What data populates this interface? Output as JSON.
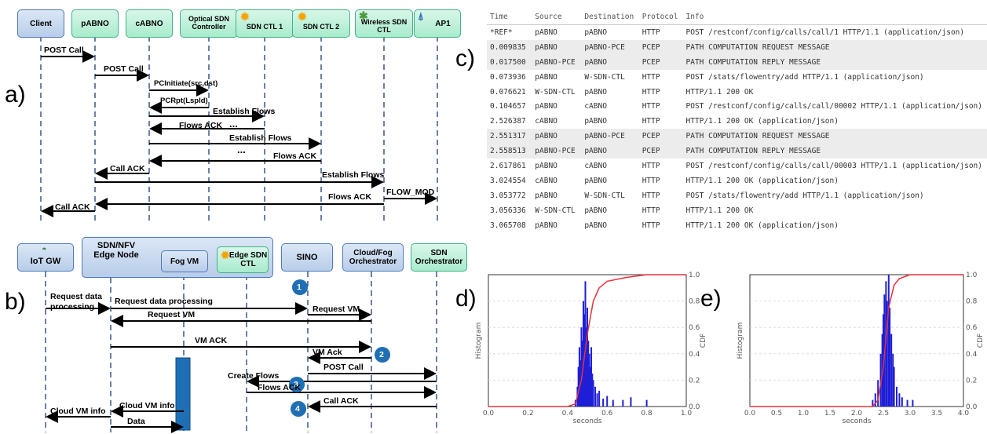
{
  "panels": {
    "a": "a)",
    "b": "b)",
    "c": "c)",
    "d": "d)",
    "e": "e)"
  },
  "seq_a": {
    "participants": [
      {
        "id": "client",
        "label": "Client",
        "style": "blue"
      },
      {
        "id": "pabno",
        "label": "pABNO",
        "style": "green"
      },
      {
        "id": "cabno",
        "label": "cABNO",
        "style": "green"
      },
      {
        "id": "optical",
        "label": "Optical SDN Controller",
        "style": "green"
      },
      {
        "id": "ctl1",
        "label": "SDN CTL 1",
        "style": "green",
        "icon": "sun-icon"
      },
      {
        "id": "ctl2",
        "label": "SDN CTL 2",
        "style": "green",
        "icon": "sun-icon"
      },
      {
        "id": "wireless",
        "label": "Wireless SDN CTL",
        "style": "green",
        "icon": "antenna-icon"
      },
      {
        "id": "ap1",
        "label": "AP1",
        "style": "green",
        "icon": "tower-icon"
      }
    ],
    "messages": [
      {
        "label": "POST Call"
      },
      {
        "label": "POST Call"
      },
      {
        "label": "PCInitiate(src,dst)"
      },
      {
        "label": "PCRpt(Lspld)"
      },
      {
        "label": "Establish Flows"
      },
      {
        "label": "Flows ACK"
      },
      {
        "label": "Establish Flows"
      },
      {
        "label": "Flows ACK"
      },
      {
        "label": "Call ACK"
      },
      {
        "label": "Establish Flows"
      },
      {
        "label": "FLOW_MOD"
      },
      {
        "label": "Flows ACK"
      },
      {
        "label": "Call ACK"
      }
    ],
    "ellipsis": "..."
  },
  "seq_b": {
    "participants": [
      {
        "id": "iotgw",
        "label": "IoT GW",
        "icon": "gauge-icon"
      },
      {
        "id": "edge",
        "label": "SDN/NFV Edge Node"
      },
      {
        "id": "fogvm",
        "label": "Fog VM"
      },
      {
        "id": "edgectl",
        "label": "Edge SDN CTL",
        "icon": "sun-icon"
      },
      {
        "id": "sino",
        "label": "SINO"
      },
      {
        "id": "cloudfog",
        "label": "Cloud/Fog Orchestrator"
      },
      {
        "id": "sdnorch",
        "label": "SDN Orchestrator"
      }
    ],
    "steps": [
      "1",
      "2",
      "3",
      "4"
    ],
    "messages": [
      {
        "label": "Request data processing"
      },
      {
        "label": "Request data processing"
      },
      {
        "label": "Request VM"
      },
      {
        "label": "Request VM"
      },
      {
        "label": "VM ACK"
      },
      {
        "label": "VM Ack"
      },
      {
        "label": "POST Call"
      },
      {
        "label": "Create Flows"
      },
      {
        "label": "Flows ACK"
      },
      {
        "label": "Call ACK"
      },
      {
        "label": "Cloud VM info"
      },
      {
        "label": "Cloud VM info"
      },
      {
        "label": "Data"
      }
    ]
  },
  "capture": {
    "headers": [
      "Time",
      "Source",
      "Destination",
      "Protocol",
      "Info"
    ],
    "rows": [
      {
        "time": "*REF*",
        "src": "pABNO",
        "dst": "pABNO",
        "proto": "HTTP",
        "info": "POST /restconf/config/calls/call/1 HTTP/1.1  (application/json)"
      },
      {
        "time": "0.009835",
        "src": "pABNO",
        "dst": "pABNO-PCE",
        "proto": "PCEP",
        "info": "PATH COMPUTATION REQUEST MESSAGE"
      },
      {
        "time": "0.017500",
        "src": "pABNO-PCE",
        "dst": "pABNO",
        "proto": "PCEP",
        "info": "PATH COMPUTATION REPLY MESSAGE"
      },
      {
        "time": "0.073936",
        "src": "pABNO",
        "dst": "W-SDN-CTL",
        "proto": "HTTP",
        "info": "POST /stats/flowentry/add HTTP/1.1  (application/json)"
      },
      {
        "time": "0.076621",
        "src": "W-SDN-CTL",
        "dst": "pABNO",
        "proto": "HTTP",
        "info": "HTTP/1.1 200 OK"
      },
      {
        "time": "0.104657",
        "src": "pABNO",
        "dst": "cABNO",
        "proto": "HTTP",
        "info": "POST /restconf/config/calls/call/00002 HTTP/1.1  (application/json)"
      },
      {
        "time": "2.526387",
        "src": "cABNO",
        "dst": "pABNO",
        "proto": "HTTP",
        "info": "HTTP/1.1 200 OK  (application/json)"
      },
      {
        "time": "2.551317",
        "src": "pABNO",
        "dst": "pABNO-PCE",
        "proto": "PCEP",
        "info": "PATH COMPUTATION REQUEST MESSAGE"
      },
      {
        "time": "2.558513",
        "src": "pABNO-PCE",
        "dst": "pABNO",
        "proto": "PCEP",
        "info": "PATH COMPUTATION REPLY MESSAGE"
      },
      {
        "time": "2.617861",
        "src": "pABNO",
        "dst": "cABNO",
        "proto": "HTTP",
        "info": "POST /restconf/config/calls/call/00003 HTTP/1.1  (application/json)"
      },
      {
        "time": "3.024554",
        "src": "cABNO",
        "dst": "pABNO",
        "proto": "HTTP",
        "info": "HTTP/1.1 200 OK  (application/json)"
      },
      {
        "time": "3.053772",
        "src": "pABNO",
        "dst": "W-SDN-CTL",
        "proto": "HTTP",
        "info": "POST /stats/flowentry/add HTTP/1.1  (application/json)"
      },
      {
        "time": "3.056336",
        "src": "W-SDN-CTL",
        "dst": "pABNO",
        "proto": "HTTP",
        "info": "HTTP/1.1 200 OK"
      },
      {
        "time": "3.065708",
        "src": "pABNO",
        "dst": "pABNO",
        "proto": "HTTP",
        "info": "HTTP/1.1 200 OK  (application/json)"
      }
    ]
  },
  "chart_data": [
    {
      "type": "histogram",
      "xlabel": "seconds",
      "ylabel": "Histogram",
      "y2label": "CDF",
      "xlim": [
        0.0,
        1.0
      ],
      "xticks": [
        "0.0",
        "0.2",
        "0.4",
        "0.6",
        "0.8",
        "1.0"
      ],
      "y2ticks": [
        "0.0",
        "0.2",
        "0.4",
        "0.6",
        "0.8",
        "1.0"
      ],
      "bins": [
        [
          0.44,
          0.05
        ],
        [
          0.45,
          0.15
        ],
        [
          0.455,
          0.3
        ],
        [
          0.46,
          0.45
        ],
        [
          0.465,
          0.35
        ],
        [
          0.47,
          0.6
        ],
        [
          0.475,
          0.5
        ],
        [
          0.48,
          0.8
        ],
        [
          0.485,
          0.7
        ],
        [
          0.49,
          0.95
        ],
        [
          0.495,
          0.6
        ],
        [
          0.5,
          0.75
        ],
        [
          0.505,
          0.5
        ],
        [
          0.51,
          0.4
        ],
        [
          0.515,
          0.3
        ],
        [
          0.52,
          0.45
        ],
        [
          0.525,
          0.25
        ],
        [
          0.53,
          0.2
        ],
        [
          0.54,
          0.15
        ],
        [
          0.55,
          0.1
        ],
        [
          0.56,
          0.12
        ],
        [
          0.58,
          0.06
        ],
        [
          0.6,
          0.08
        ],
        [
          0.63,
          0.05
        ],
        [
          0.68,
          0.05
        ],
        [
          0.72,
          0.07
        ],
        [
          0.8,
          0.05
        ]
      ],
      "cdf": [
        [
          0.0,
          0.0
        ],
        [
          0.4,
          0.0
        ],
        [
          0.44,
          0.02
        ],
        [
          0.47,
          0.2
        ],
        [
          0.5,
          0.55
        ],
        [
          0.53,
          0.8
        ],
        [
          0.56,
          0.9
        ],
        [
          0.6,
          0.95
        ],
        [
          0.7,
          0.98
        ],
        [
          0.8,
          1.0
        ],
        [
          1.0,
          1.0
        ]
      ],
      "series_colors": {
        "hist": "#1f1fd6",
        "cdf": "#e8303a"
      }
    },
    {
      "type": "histogram",
      "xlabel": "seconds",
      "ylabel": "Histogram",
      "y2label": "CDF",
      "xlim": [
        0.0,
        4.0
      ],
      "xticks": [
        "0.0",
        "0.5",
        "1.0",
        "1.5",
        "2.0",
        "2.5",
        "3.0",
        "3.5",
        "4.0"
      ],
      "y2ticks": [
        "0.0",
        "0.2",
        "0.4",
        "0.6",
        "0.8",
        "1.0"
      ],
      "bins": [
        [
          2.3,
          0.05
        ],
        [
          2.35,
          0.1
        ],
        [
          2.4,
          0.2
        ],
        [
          2.45,
          0.4
        ],
        [
          2.48,
          0.55
        ],
        [
          2.5,
          0.7
        ],
        [
          2.52,
          0.85
        ],
        [
          2.55,
          0.95
        ],
        [
          2.57,
          0.8
        ],
        [
          2.6,
          1.0
        ],
        [
          2.62,
          0.75
        ],
        [
          2.65,
          0.55
        ],
        [
          2.68,
          0.4
        ],
        [
          2.7,
          0.3
        ],
        [
          2.75,
          0.15
        ],
        [
          2.8,
          0.1
        ],
        [
          2.85,
          0.07
        ],
        [
          2.95,
          0.05
        ],
        [
          3.05,
          0.05
        ]
      ],
      "cdf": [
        [
          0.0,
          0.0
        ],
        [
          2.3,
          0.0
        ],
        [
          2.4,
          0.05
        ],
        [
          2.5,
          0.3
        ],
        [
          2.6,
          0.75
        ],
        [
          2.7,
          0.92
        ],
        [
          2.8,
          0.97
        ],
        [
          3.0,
          1.0
        ],
        [
          4.0,
          1.0
        ]
      ],
      "series_colors": {
        "hist": "#1f1fd6",
        "cdf": "#e8303a"
      }
    }
  ]
}
